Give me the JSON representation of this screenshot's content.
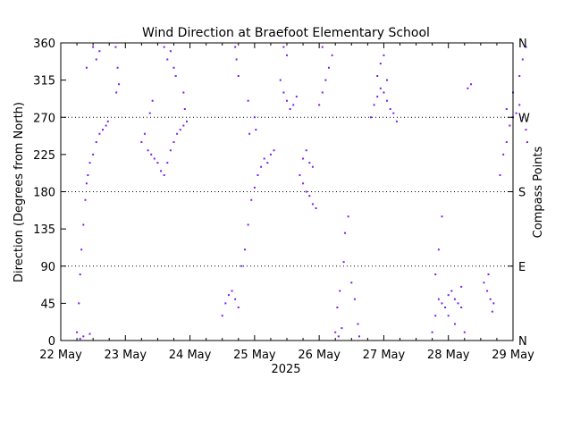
{
  "chart_data": {
    "type": "scatter",
    "title": "Wind Direction at Braefoot Elementary School",
    "ylabel": "Direction (Degrees from North)",
    "y2label": "Compass Points",
    "xlabel": "2025",
    "x_ticks": [
      "22 May",
      "23 May",
      "24 May",
      "25 May",
      "26 May",
      "27 May",
      "28 May",
      "29 May"
    ],
    "x_range_days": [
      0,
      7
    ],
    "ylim": [
      0,
      360
    ],
    "y_ticks": [
      0,
      45,
      90,
      135,
      180,
      225,
      270,
      315,
      360
    ],
    "compass_ticks": [
      {
        "label": "N",
        "value": 0
      },
      {
        "label": "E",
        "value": 90
      },
      {
        "label": "S",
        "value": 180
      },
      {
        "label": "W",
        "value": 270
      },
      {
        "label": "N",
        "value": 360
      }
    ],
    "gridlines_dotted": [
      90,
      180,
      270
    ],
    "point_color": "#7b1fe8",
    "series": [
      {
        "points": [
          [
            0.25,
            10
          ],
          [
            0.28,
            45
          ],
          [
            0.3,
            80
          ],
          [
            0.32,
            110
          ],
          [
            0.35,
            140
          ],
          [
            0.38,
            170
          ],
          [
            0.4,
            190
          ],
          [
            0.42,
            200
          ],
          [
            0.45,
            215
          ],
          [
            0.5,
            225
          ],
          [
            0.55,
            240
          ],
          [
            0.6,
            250
          ],
          [
            0.65,
            255
          ],
          [
            0.7,
            260
          ],
          [
            0.73,
            265
          ],
          [
            0.5,
            355
          ],
          [
            0.55,
            340
          ],
          [
            0.6,
            350
          ],
          [
            0.4,
            330
          ],
          [
            0.35,
            5
          ],
          [
            0.3,
            2
          ],
          [
            0.45,
            8
          ],
          [
            0.85,
            355
          ],
          [
            0.88,
            330
          ],
          [
            0.9,
            310
          ],
          [
            0.86,
            300
          ],
          [
            1.25,
            240
          ],
          [
            1.3,
            250
          ],
          [
            1.35,
            230
          ],
          [
            1.4,
            225
          ],
          [
            1.45,
            220
          ],
          [
            1.5,
            215
          ],
          [
            1.55,
            205
          ],
          [
            1.6,
            200
          ],
          [
            1.65,
            215
          ],
          [
            1.7,
            230
          ],
          [
            1.75,
            240
          ],
          [
            1.8,
            250
          ],
          [
            1.85,
            255
          ],
          [
            1.9,
            260
          ],
          [
            1.95,
            265
          ],
          [
            1.38,
            275
          ],
          [
            1.42,
            290
          ],
          [
            1.6,
            355
          ],
          [
            1.65,
            340
          ],
          [
            1.7,
            350
          ],
          [
            1.75,
            330
          ],
          [
            1.78,
            320
          ],
          [
            1.9,
            300
          ],
          [
            1.92,
            280
          ],
          [
            2.5,
            30
          ],
          [
            2.55,
            45
          ],
          [
            2.6,
            55
          ],
          [
            2.65,
            60
          ],
          [
            2.7,
            50
          ],
          [
            2.75,
            40
          ],
          [
            2.8,
            90
          ],
          [
            2.85,
            110
          ],
          [
            2.9,
            140
          ],
          [
            2.95,
            170
          ],
          [
            3.0,
            185
          ],
          [
            3.05,
            200
          ],
          [
            3.1,
            210
          ],
          [
            3.15,
            220
          ],
          [
            3.2,
            215
          ],
          [
            3.25,
            225
          ],
          [
            3.3,
            230
          ],
          [
            2.7,
            355
          ],
          [
            2.72,
            340
          ],
          [
            2.75,
            320
          ],
          [
            2.9,
            290
          ],
          [
            2.92,
            250
          ],
          [
            3.0,
            270
          ],
          [
            3.02,
            255
          ],
          [
            3.4,
            315
          ],
          [
            3.45,
            300
          ],
          [
            3.5,
            290
          ],
          [
            3.55,
            280
          ],
          [
            3.6,
            285
          ],
          [
            3.65,
            295
          ],
          [
            3.45,
            355
          ],
          [
            3.5,
            345
          ],
          [
            3.7,
            200
          ],
          [
            3.75,
            190
          ],
          [
            3.8,
            180
          ],
          [
            3.85,
            175
          ],
          [
            3.9,
            165
          ],
          [
            3.95,
            160
          ],
          [
            3.75,
            220
          ],
          [
            3.8,
            230
          ],
          [
            3.85,
            215
          ],
          [
            3.9,
            210
          ],
          [
            4.0,
            285
          ],
          [
            4.05,
            300
          ],
          [
            4.1,
            315
          ],
          [
            4.15,
            330
          ],
          [
            4.2,
            345
          ],
          [
            4.05,
            355
          ],
          [
            4.25,
            10
          ],
          [
            4.3,
            5
          ],
          [
            4.35,
            15
          ],
          [
            4.28,
            40
          ],
          [
            4.32,
            60
          ],
          [
            4.38,
            95
          ],
          [
            4.4,
            130
          ],
          [
            4.45,
            150
          ],
          [
            4.5,
            70
          ],
          [
            4.55,
            50
          ],
          [
            4.6,
            20
          ],
          [
            4.62,
            5
          ],
          [
            4.8,
            270
          ],
          [
            4.85,
            285
          ],
          [
            4.9,
            295
          ],
          [
            4.95,
            305
          ],
          [
            5.0,
            300
          ],
          [
            5.05,
            290
          ],
          [
            5.1,
            280
          ],
          [
            5.15,
            275
          ],
          [
            5.2,
            265
          ],
          [
            4.9,
            320
          ],
          [
            4.95,
            335
          ],
          [
            5.0,
            345
          ],
          [
            5.05,
            315
          ],
          [
            5.75,
            10
          ],
          [
            5.8,
            30
          ],
          [
            5.85,
            50
          ],
          [
            5.9,
            45
          ],
          [
            5.95,
            40
          ],
          [
            6.0,
            55
          ],
          [
            6.05,
            60
          ],
          [
            6.1,
            50
          ],
          [
            6.15,
            45
          ],
          [
            6.2,
            40
          ],
          [
            5.8,
            80
          ],
          [
            5.85,
            110
          ],
          [
            5.9,
            150
          ],
          [
            6.25,
            10
          ],
          [
            6.0,
            30
          ],
          [
            6.1,
            20
          ],
          [
            6.2,
            65
          ],
          [
            6.3,
            305
          ],
          [
            6.35,
            310
          ],
          [
            6.55,
            70
          ],
          [
            6.6,
            60
          ],
          [
            6.65,
            50
          ],
          [
            6.7,
            45
          ],
          [
            6.62,
            80
          ],
          [
            6.68,
            35
          ],
          [
            6.8,
            200
          ],
          [
            6.85,
            225
          ],
          [
            6.9,
            240
          ],
          [
            6.95,
            260
          ],
          [
            7.0,
            270
          ],
          [
            7.05,
            275
          ],
          [
            7.1,
            285
          ],
          [
            7.15,
            270
          ],
          [
            7.2,
            255
          ],
          [
            7.22,
            240
          ],
          [
            7.1,
            320
          ],
          [
            7.15,
            340
          ],
          [
            7.2,
            355
          ],
          [
            6.9,
            280
          ],
          [
            7.0,
            300
          ]
        ]
      }
    ]
  }
}
